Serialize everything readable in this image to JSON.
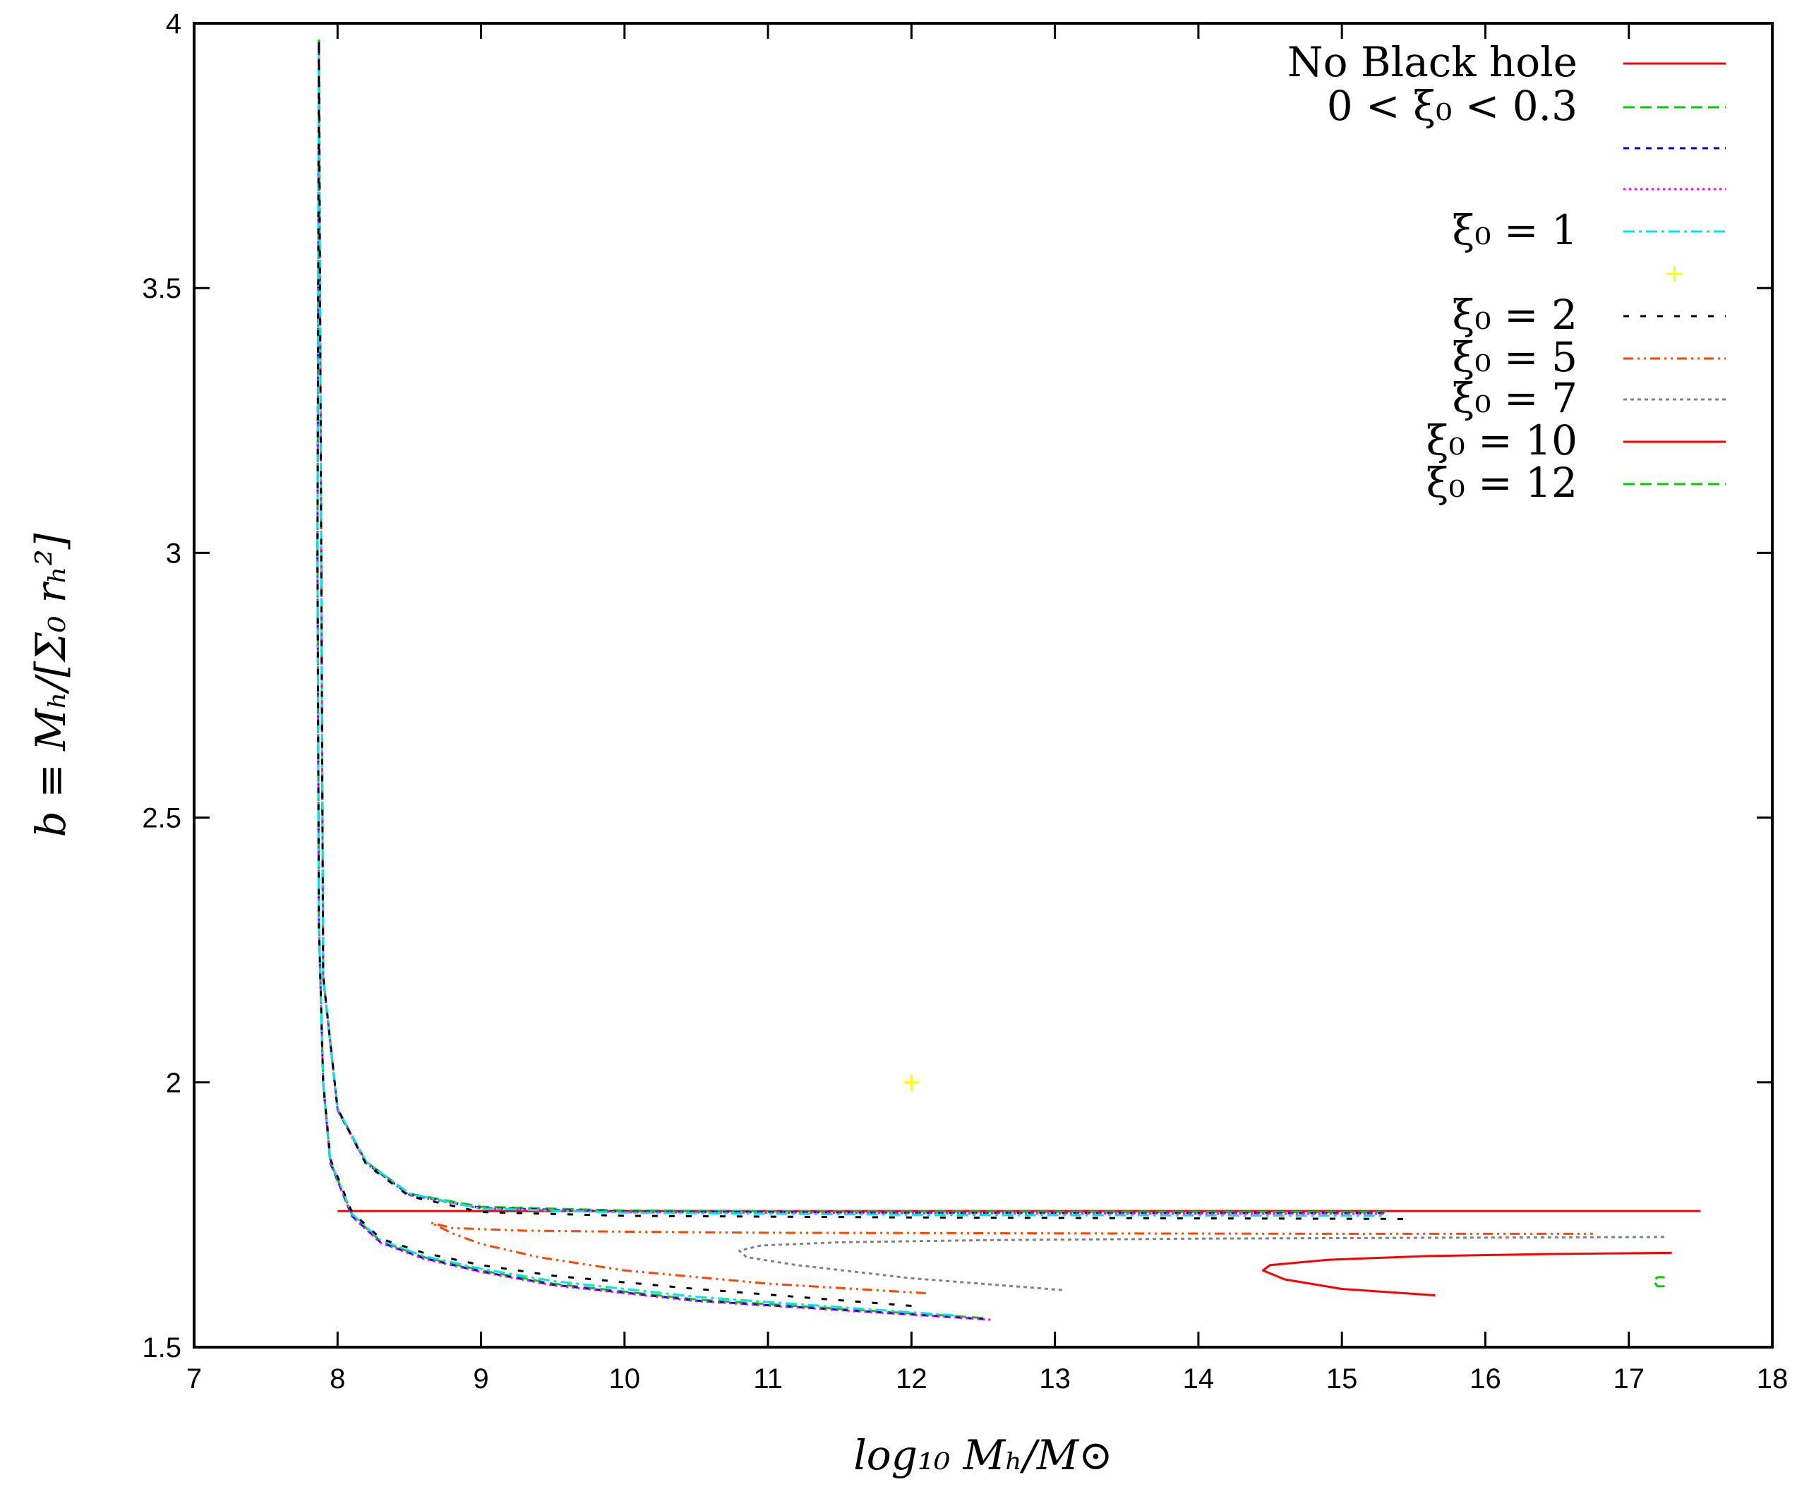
{
  "chart_data": {
    "type": "line",
    "title": "",
    "xlabel": "log₁₀ Mₕ/M⊙",
    "ylabel": "b ≡ Mₕ/[Σ₀ rₕ²]",
    "xlim": [
      7,
      18
    ],
    "ylim": [
      1.5,
      4
    ],
    "xticks": [
      "7",
      "8",
      "9",
      "10",
      "11",
      "12",
      "13",
      "14",
      "15",
      "16",
      "17",
      "18"
    ],
    "yticks": [
      "1.5",
      "2",
      "2.5",
      "3",
      "3.5",
      "4"
    ],
    "grid": false,
    "legend_position": "top-right",
    "series": [
      {
        "name": "No Black hole",
        "color": "#ff0000",
        "dash": "solid",
        "x": [
          8.0,
          17.5
        ],
        "y": [
          1.757,
          1.757
        ]
      },
      {
        "name": "0 < ξ₀ < 0.3",
        "color": "#00cc00",
        "dash": "long",
        "x": [
          12.5,
          10.5,
          9.5,
          9.0,
          8.6,
          8.3,
          8.1,
          7.95,
          7.9,
          7.87,
          7.86,
          7.87,
          7.9,
          8.0,
          8.2,
          8.5,
          9.0,
          10.0,
          12.0,
          15.3
        ],
        "y": [
          1.555,
          1.59,
          1.62,
          1.645,
          1.67,
          1.7,
          1.75,
          1.85,
          2.0,
          2.3,
          3.0,
          3.97,
          2.2,
          1.95,
          1.85,
          1.79,
          1.765,
          1.758,
          1.756,
          1.755
        ]
      },
      {
        "name": "",
        "color": "#0000cc",
        "dash": "short",
        "x": [
          12.5,
          10.5,
          9.5,
          9.0,
          8.6,
          8.3,
          8.1,
          7.95,
          7.9,
          7.87,
          7.86,
          7.87,
          7.9,
          8.0,
          8.2,
          8.5,
          9.0,
          10.0,
          12.0,
          15.3
        ],
        "y": [
          1.553,
          1.588,
          1.618,
          1.643,
          1.668,
          1.698,
          1.748,
          1.848,
          1.998,
          2.298,
          2.998,
          3.96,
          2.198,
          1.948,
          1.848,
          1.788,
          1.763,
          1.756,
          1.754,
          1.753
        ]
      },
      {
        "name": "",
        "color": "#ff00ff",
        "dash": "dotted",
        "x": [
          12.55,
          10.5,
          9.5,
          9.0,
          8.6,
          8.3,
          8.1,
          7.95,
          7.9,
          7.87,
          7.86,
          7.87,
          7.9,
          8.0,
          8.2,
          8.5,
          9.0,
          10.0,
          12.0,
          15.3
        ],
        "y": [
          1.552,
          1.587,
          1.617,
          1.642,
          1.667,
          1.697,
          1.747,
          1.847,
          1.997,
          2.297,
          2.997,
          3.95,
          2.197,
          1.947,
          1.847,
          1.787,
          1.762,
          1.755,
          1.753,
          1.752
        ]
      },
      {
        "name": "ξ₀ = 1",
        "color": "#00e5e5",
        "dash": "dashdot",
        "x": [
          12.3,
          10.5,
          9.5,
          9.0,
          8.6,
          8.3,
          8.1,
          7.95,
          7.9,
          7.87,
          7.86,
          7.87,
          7.9,
          8.0,
          8.2,
          8.5,
          9.0,
          10.0,
          12.0,
          15.3
        ],
        "y": [
          1.56,
          1.595,
          1.625,
          1.648,
          1.672,
          1.702,
          1.752,
          1.852,
          2.0,
          2.3,
          3.0,
          3.94,
          2.2,
          1.95,
          1.85,
          1.79,
          1.762,
          1.754,
          1.75,
          1.748
        ]
      },
      {
        "name": "",
        "color": "#ffff00",
        "dash": "points",
        "x": [
          12.0
        ],
        "y": [
          2.0
        ]
      },
      {
        "name": "ξ₀ = 2",
        "color": "#000000",
        "dash": "longgap",
        "x": [
          12.0,
          10.5,
          9.5,
          9.0,
          8.6,
          8.3,
          8.1,
          7.95,
          7.9,
          7.87,
          7.86,
          7.87,
          7.9,
          8.0,
          8.2,
          8.5,
          9.0,
          10.0,
          12.0,
          15.5
        ],
        "y": [
          1.578,
          1.61,
          1.635,
          1.655,
          1.678,
          1.705,
          1.755,
          1.855,
          2.0,
          2.3,
          3.0,
          3.97,
          2.2,
          1.95,
          1.845,
          1.785,
          1.755,
          1.748,
          1.745,
          1.742
        ]
      },
      {
        "name": "ξ₀ = 5",
        "color": "#ff4500",
        "dash": "dashdotdot",
        "x": [
          12.1,
          11.0,
          10.0,
          9.4,
          9.0,
          8.8,
          8.65,
          8.8,
          9.3,
          10.0,
          11.0,
          13.0,
          15.0,
          16.75
        ],
        "y": [
          1.602,
          1.62,
          1.645,
          1.67,
          1.695,
          1.715,
          1.735,
          1.725,
          1.72,
          1.718,
          1.716,
          1.715,
          1.714,
          1.714
        ]
      },
      {
        "name": "ξ₀ = 7",
        "color": "#808080",
        "dash": "finedot",
        "x": [
          13.05,
          12.0,
          11.2,
          10.85,
          10.8,
          10.95,
          11.5,
          12.5,
          14.0,
          16.0,
          17.25
        ],
        "y": [
          1.608,
          1.63,
          1.655,
          1.67,
          1.682,
          1.692,
          1.698,
          1.702,
          1.705,
          1.707,
          1.708
        ]
      },
      {
        "name": "ξ₀ = 10",
        "color": "#ff0000",
        "dash": "solid",
        "x": [
          15.65,
          15.0,
          14.6,
          14.45,
          14.5,
          14.9,
          15.6,
          16.5,
          17.3
        ],
        "y": [
          1.598,
          1.61,
          1.628,
          1.645,
          1.655,
          1.665,
          1.672,
          1.676,
          1.678
        ]
      },
      {
        "name": "ξ₀ = 12",
        "color": "#00cc00",
        "dash": "long",
        "x": [
          17.25,
          17.2,
          17.17,
          17.2,
          17.25
        ],
        "y": [
          1.615,
          1.615,
          1.625,
          1.632,
          1.632
        ]
      }
    ]
  }
}
